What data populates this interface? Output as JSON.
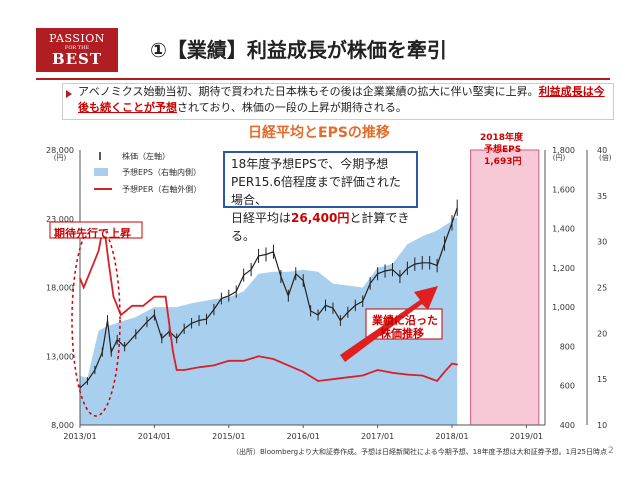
{
  "slide": {
    "logo": {
      "line1": "PASSION",
      "line2": "FOR THE",
      "line3": "BEST"
    },
    "title": "①【業績】利益成長が株価を牽引",
    "intro_part1": "アベノミクス始動当初、期待で買われた日本株もその後は企業業績の拡大に伴い堅実に上昇。",
    "intro_highlight": "利益成長は今後も続くことが予想",
    "intro_part2": "されており、株価の一段の上昇が期待される。",
    "chart_title": "日経平均とEPSの推移",
    "callout_line1": "18年度予想EPSで、今期予想",
    "callout_line2": "PER15.6倍程度まで評価された場合、",
    "callout_line3_pre": "日経平均は",
    "callout_value": "26,400円",
    "callout_line3_post": "と計算できる。",
    "tag_expectation": "期待先行で上昇",
    "tag_earnings_l1": "業績に沿った",
    "tag_earnings_l2": "株価推移",
    "eps_2018_l1": "2018年度",
    "eps_2018_l2": "予想EPS",
    "eps_2018_l3": "1,693円",
    "footnote": "（出所）Bloombergより大和証券作成。予想は日経新聞社による今期予想、18年度予想は大和証券予想。1月25日時点",
    "page_number": "2"
  },
  "chart_data": {
    "type": "line",
    "title": "日経平均とEPSの推移",
    "legend": [
      "株価（左軸）",
      "予想EPS（右軸内側）",
      "予想PER（右軸外側）"
    ],
    "legend_placement": "top-left",
    "x_ticks": [
      "2013/01",
      "2014/01",
      "2015/01",
      "2016/01",
      "2017/01",
      "2018/01",
      "2019/01"
    ],
    "left_axis": {
      "label": "(円)",
      "ticks": [
        "8,000",
        "13,000",
        "18,000",
        "23,000",
        "28,000"
      ],
      "range": [
        8000,
        28000
      ]
    },
    "right_inner_axis": {
      "label": "(円)",
      "ticks": [
        "400",
        "600",
        "800",
        "1,000",
        "1,200",
        "1,400",
        "1,600",
        "1,800"
      ],
      "range": [
        400,
        1800
      ]
    },
    "right_outer_axis": {
      "label": "(倍)",
      "ticks": [
        "10",
        "15",
        "20",
        "25",
        "30",
        "35",
        "40"
      ],
      "range": [
        10,
        40
      ]
    },
    "colors": {
      "price": "#222222",
      "eps": "#a9cfee",
      "per": "#d8202a",
      "forecast": "#f7c9d6"
    },
    "forecast_period": [
      "2018/04",
      "2019/03"
    ],
    "series": [
      {
        "name": "株価（左軸）",
        "axis": "left",
        "x": [
          2013.0,
          2013.1,
          2013.2,
          2013.3,
          2013.37,
          2013.42,
          2013.5,
          2013.6,
          2013.75,
          2013.9,
          2014.0,
          2014.1,
          2014.2,
          2014.3,
          2014.4,
          2014.5,
          2014.6,
          2014.7,
          2014.8,
          2014.9,
          2015.0,
          2015.1,
          2015.2,
          2015.3,
          2015.4,
          2015.5,
          2015.6,
          2015.7,
          2015.8,
          2015.9,
          2016.0,
          2016.1,
          2016.2,
          2016.3,
          2016.4,
          2016.5,
          2016.6,
          2016.7,
          2016.8,
          2016.9,
          2017.0,
          2017.1,
          2017.2,
          2017.3,
          2017.4,
          2017.5,
          2017.6,
          2017.7,
          2017.8,
          2017.9,
          2018.0,
          2018.07
        ],
        "y": [
          10700,
          11200,
          12000,
          13300,
          15600,
          13300,
          14200,
          13700,
          14600,
          15500,
          16000,
          14300,
          14800,
          14300,
          15000,
          15400,
          15600,
          15700,
          16400,
          17200,
          17400,
          17700,
          18900,
          19300,
          20300,
          20400,
          20600,
          18800,
          17400,
          19000,
          18500,
          16300,
          16000,
          16700,
          16500,
          15600,
          16200,
          16700,
          17000,
          18300,
          19000,
          19200,
          19300,
          18800,
          19400,
          19700,
          19800,
          19800,
          19600,
          21200,
          22700,
          23800
        ]
      },
      {
        "name": "予想EPS（右軸内側）",
        "axis": "right_inner",
        "x": [
          2013.0,
          2013.1,
          2013.25,
          2013.35,
          2013.5,
          2013.75,
          2014.0,
          2014.3,
          2014.5,
          2014.8,
          2015.0,
          2015.2,
          2015.4,
          2015.6,
          2015.8,
          2016.0,
          2016.2,
          2016.4,
          2016.6,
          2016.8,
          2017.0,
          2017.2,
          2017.4,
          2017.6,
          2017.8,
          2018.0,
          2018.07
        ],
        "y": [
          650,
          640,
          880,
          900,
          920,
          950,
          1000,
          1000,
          1020,
          1040,
          1050,
          1080,
          1170,
          1180,
          1180,
          1190,
          1180,
          1120,
          1110,
          1100,
          1200,
          1220,
          1320,
          1360,
          1390,
          1440,
          1460
        ]
      },
      {
        "name": "予想PER（右軸外側）",
        "axis": "right_outer",
        "x": [
          2013.0,
          2013.05,
          2013.15,
          2013.25,
          2013.32,
          2013.38,
          2013.45,
          2013.55,
          2013.7,
          2013.85,
          2014.0,
          2014.15,
          2014.25,
          2014.3,
          2014.4,
          2014.6,
          2014.8,
          2015.0,
          2015.2,
          2015.4,
          2015.6,
          2015.8,
          2016.0,
          2016.2,
          2016.4,
          2016.6,
          2016.8,
          2017.0,
          2017.2,
          2017.4,
          2017.6,
          2017.8,
          2017.9,
          2018.0,
          2018.07
        ],
        "y": [
          26,
          25,
          27,
          29,
          32,
          28,
          24,
          22,
          23,
          23,
          24,
          24,
          18,
          16,
          16,
          16.3,
          16.5,
          17,
          17,
          17.5,
          17.2,
          16.5,
          15.8,
          14.8,
          15,
          15.2,
          15.4,
          16,
          15.7,
          15.5,
          15.4,
          14.8,
          15.8,
          16.7,
          16.6
        ]
      }
    ]
  }
}
